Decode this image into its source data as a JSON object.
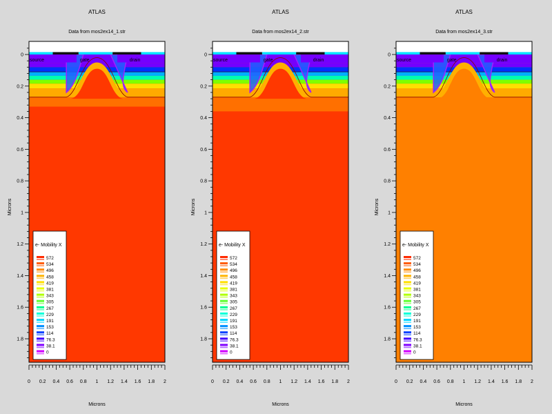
{
  "figure": {
    "xlabel": "Microns",
    "ylabel": "Microns",
    "legend_title": "e- Mobility X",
    "label_source": "source",
    "label_gate": "gate",
    "label_drain": "drain",
    "levels": [
      "572",
      "534",
      "496",
      "458",
      "419",
      "381",
      "343",
      "305",
      "267",
      "229",
      "191",
      "153",
      "114",
      "76.3",
      "38.1",
      "0"
    ],
    "level_colors": [
      "#ff2a00",
      "#ff5a00",
      "#ff8c00",
      "#ffb400",
      "#ffe000",
      "#e8ff00",
      "#b0ff00",
      "#60ff30",
      "#00ff90",
      "#00ffd8",
      "#00d8ff",
      "#0090ff",
      "#0040ff",
      "#4000ff",
      "#8000ff",
      "#d000ff"
    ],
    "colors": {
      "background": "#d9d9d9",
      "contact": "#00e0ff",
      "gate": "#111111",
      "oxide": "#ffffff",
      "bulk_12": "#ff3800",
      "bulk_3": "#ff8000",
      "violet": "#7400ff",
      "blue": "#0030ff",
      "edge": "#1a1a1a",
      "contour": "#000000"
    }
  },
  "chart_data": [
    {
      "type": "heatmap",
      "title": "ATLAS",
      "subtitle": "Data from mos2ex14_1.str",
      "xlabel": "Microns",
      "ylabel": "Microns",
      "xlim": [
        0,
        2
      ],
      "ylim": [
        2,
        0
      ],
      "x_ticks": [
        "0",
        "0.2",
        "0.4",
        "0.6",
        "0.8",
        "1",
        "1.2",
        "1.4",
        "1.6",
        "1.8",
        "2"
      ],
      "y_ticks": [
        "0",
        "0.2",
        "0.4",
        "0.6",
        "0.8",
        "1",
        "1.2",
        "1.4",
        "1.6",
        "1.8"
      ],
      "legend_title": "e- Mobility X",
      "legend_levels": [
        "572",
        "534",
        "496",
        "458",
        "419",
        "381",
        "343",
        "305",
        "267",
        "229",
        "191",
        "153",
        "114",
        "76.3",
        "38.1",
        "0"
      ],
      "electrode_labels": [
        "source",
        "gate",
        "drain"
      ],
      "bulk_mobility": 572,
      "surface_layer_depth_um": 0.27,
      "bulk_depth_um": 0.33
    },
    {
      "type": "heatmap",
      "title": "ATLAS",
      "subtitle": "Data from mos2ex14_2.str",
      "xlabel": "Microns",
      "ylabel": "Microns",
      "xlim": [
        0,
        2
      ],
      "ylim": [
        2,
        0
      ],
      "x_ticks": [
        "0",
        "0.2",
        "0.4",
        "0.6",
        "0.8",
        "1",
        "1.2",
        "1.4",
        "1.6",
        "1.8",
        "2"
      ],
      "y_ticks": [
        "0",
        "0.2",
        "0.4",
        "0.6",
        "0.8",
        "1",
        "1.2",
        "1.4",
        "1.6",
        "1.8"
      ],
      "legend_title": "e- Mobility X",
      "legend_levels": [
        "572",
        "534",
        "496",
        "458",
        "419",
        "381",
        "343",
        "305",
        "267",
        "229",
        "191",
        "153",
        "114",
        "76.3",
        "38.1",
        "0"
      ],
      "electrode_labels": [
        "source",
        "gate",
        "drain"
      ],
      "bulk_mobility": 572,
      "surface_layer_depth_um": 0.27,
      "bulk_depth_um": 0.36
    },
    {
      "type": "heatmap",
      "title": "ATLAS",
      "subtitle": "Data from mos2ex14_3.str",
      "xlabel": "Microns",
      "ylabel": "Microns",
      "xlim": [
        0,
        2
      ],
      "ylim": [
        2,
        0
      ],
      "x_ticks": [
        "0",
        "0.2",
        "0.4",
        "0.6",
        "0.8",
        "1",
        "1.2",
        "1.4",
        "1.6",
        "1.8",
        "2"
      ],
      "y_ticks": [
        "0",
        "0.2",
        "0.4",
        "0.6",
        "0.8",
        "1",
        "1.2",
        "1.4",
        "1.6",
        "1.8"
      ],
      "legend_title": "e- Mobility X",
      "legend_levels": [
        "572",
        "534",
        "496",
        "458",
        "419",
        "381",
        "343",
        "305",
        "267",
        "229",
        "191",
        "153",
        "114",
        "76.3",
        "38.1",
        "0"
      ],
      "electrode_labels": [
        "source",
        "gate",
        "drain"
      ],
      "bulk_mobility": 496,
      "surface_layer_depth_um": 0.27,
      "bulk_depth_um": 0.27
    }
  ]
}
